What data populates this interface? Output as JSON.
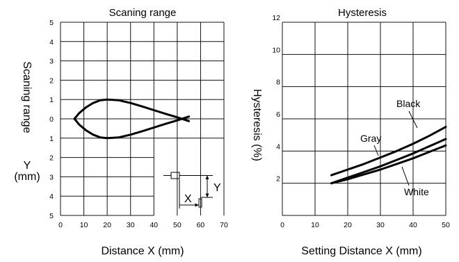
{
  "chart_data": [
    {
      "type": "line",
      "title": "Scaning range",
      "xlabel": "Distance X (mm)",
      "ylabel": "Scaning range",
      "ylabel_unit": "Y\n(mm)",
      "xlim": [
        0,
        70
      ],
      "ylim": [
        -5,
        5
      ],
      "x_ticks": [
        "0",
        "10",
        "20",
        "30",
        "40",
        "50",
        "60",
        "70"
      ],
      "y_ticks": [
        "5",
        "4",
        "3",
        "2",
        "1",
        "0",
        "1",
        "2",
        "3",
        "4",
        "5"
      ],
      "grid": true,
      "series": [
        {
          "x": [
            6,
            8,
            11,
            14,
            17,
            20,
            25,
            30,
            35,
            40,
            45,
            50,
            55
          ],
          "y": [
            0,
            0.3,
            0.6,
            0.82,
            0.96,
            1.0,
            0.96,
            0.82,
            0.64,
            0.45,
            0.26,
            0.08,
            -0.12
          ]
        },
        {
          "x": [
            6,
            8,
            11,
            14,
            17,
            20,
            25,
            30,
            35,
            40,
            45,
            50,
            55
          ],
          "y": [
            0,
            -0.3,
            -0.6,
            -0.82,
            -0.96,
            -1.0,
            -0.96,
            -0.82,
            -0.64,
            -0.45,
            -0.26,
            -0.08,
            0.12
          ]
        }
      ],
      "inset": {
        "x_label": "X",
        "y_label": "Y"
      }
    },
    {
      "type": "line",
      "title": "Hysteresis",
      "xlabel": "Setting Distance X (mm)",
      "ylabel": "Hysteresis (%)",
      "xlim": [
        0,
        50
      ],
      "ylim": [
        0,
        12
      ],
      "x_ticks": [
        "0",
        "10",
        "20",
        "30",
        "40",
        "50"
      ],
      "y_ticks": [
        "2",
        "4",
        "6",
        "8",
        "10",
        "12"
      ],
      "grid": true,
      "series": [
        {
          "name": "Black",
          "x": [
            15,
            20,
            25,
            30,
            35,
            40,
            45,
            50
          ],
          "y": [
            2.5,
            2.85,
            3.2,
            3.6,
            4.0,
            4.45,
            4.95,
            5.5
          ]
        },
        {
          "name": "Gray",
          "x": [
            15,
            20,
            25,
            30,
            35,
            40,
            45,
            50
          ],
          "y": [
            2.0,
            2.35,
            2.7,
            3.05,
            3.45,
            3.85,
            4.3,
            4.75
          ]
        },
        {
          "name": "White",
          "x": [
            15,
            20,
            25,
            30,
            35,
            40,
            45,
            50
          ],
          "y": [
            2.0,
            2.25,
            2.55,
            2.85,
            3.2,
            3.55,
            3.95,
            4.35
          ]
        }
      ]
    }
  ]
}
